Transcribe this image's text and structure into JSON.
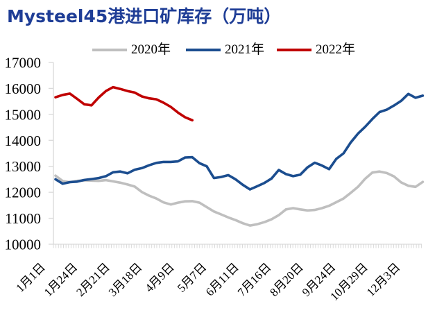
{
  "title": "Mysteel45港进口矿库存（万吨）",
  "colors": {
    "title_color": "#1e3d96",
    "axis_color": "#d9d9d9",
    "label_color": "#000000"
  },
  "legend": [
    {
      "label": "2020年",
      "color": "#bfbfbf"
    },
    {
      "label": "2021年",
      "color": "#1b4d8f"
    },
    {
      "label": "2022年",
      "color": "#c00000"
    }
  ],
  "chart_data": {
    "type": "line",
    "title": "Mysteel45港进口矿库存（万吨）",
    "ylabel": "",
    "xlabel": "",
    "ylim": [
      10000,
      17000
    ],
    "grid": false,
    "legend_position": "top",
    "y_ticks": [
      17000,
      16000,
      15000,
      14000,
      13000,
      12000,
      11000,
      10000
    ],
    "x_ticks": [
      "1月1日",
      "1月24日",
      "2月21日",
      "3月18日",
      "4月9日",
      "5月7日",
      "6月11日",
      "7月16日",
      "8月20日",
      "9月24日",
      "10月29日",
      "12月3日"
    ],
    "series": [
      {
        "name": "2020年",
        "color": "#bfbfbf",
        "values": [
          12640,
          12430,
          12390,
          12440,
          12460,
          12450,
          12440,
          12470,
          12420,
          12370,
          12300,
          12220,
          12010,
          11870,
          11760,
          11610,
          11530,
          11600,
          11650,
          11660,
          11600,
          11430,
          11260,
          11150,
          11030,
          10930,
          10810,
          10720,
          10770,
          10850,
          10960,
          11120,
          11340,
          11390,
          11340,
          11300,
          11320,
          11390,
          11480,
          11620,
          11760,
          11980,
          12210,
          12520,
          12760,
          12800,
          12740,
          12610,
          12380,
          12250,
          12210,
          12400
        ]
      },
      {
        "name": "2021年",
        "color": "#1b4d8f",
        "values": [
          12500,
          12330,
          12390,
          12410,
          12475,
          12510,
          12550,
          12620,
          12770,
          12800,
          12730,
          12870,
          12930,
          13040,
          13130,
          13170,
          13170,
          13190,
          13340,
          13350,
          13120,
          13000,
          12550,
          12590,
          12660,
          12500,
          12290,
          12110,
          12230,
          12360,
          12530,
          12860,
          12700,
          12620,
          12680,
          12960,
          13140,
          13030,
          12890,
          13290,
          13500,
          13920,
          14260,
          14520,
          14820,
          15090,
          15180,
          15340,
          15520,
          15790,
          15640,
          15720
        ]
      },
      {
        "name": "2022年",
        "color": "#c00000",
        "values": [
          15660,
          15750,
          15800,
          15600,
          15390,
          15350,
          15650,
          15900,
          16050,
          15980,
          15900,
          15840,
          15690,
          15620,
          15580,
          15450,
          15290,
          15070,
          14890,
          14775
        ]
      }
    ]
  }
}
